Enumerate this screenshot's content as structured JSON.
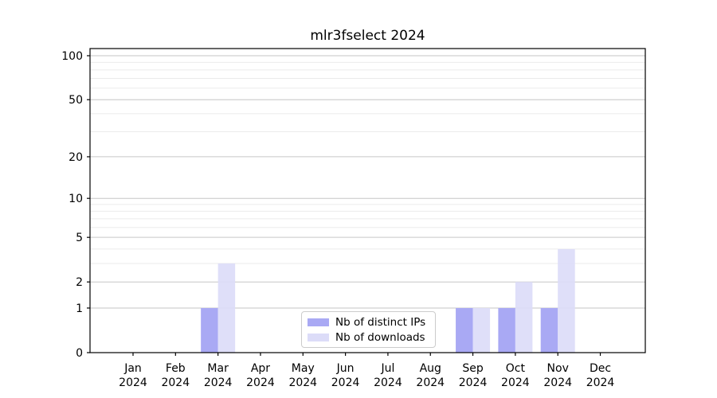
{
  "chart_data": {
    "type": "bar",
    "title": "mlr3fselect 2024",
    "xlabel": "",
    "ylabel": "",
    "categories": [
      "Jan 2024",
      "Feb 2024",
      "Mar 2024",
      "Apr 2024",
      "May 2024",
      "Jun 2024",
      "Jul 2024",
      "Aug 2024",
      "Sep 2024",
      "Oct 2024",
      "Nov 2024",
      "Dec 2024"
    ],
    "series": [
      {
        "name": "Nb of distinct IPs",
        "color": "#a9a9f4",
        "values": [
          0,
          0,
          1,
          0,
          0,
          0,
          0,
          0,
          1,
          1,
          1,
          0
        ]
      },
      {
        "name": "Nb of downloads",
        "color": "#dcdcf8",
        "values": [
          0,
          0,
          3,
          0,
          0,
          0,
          0,
          0,
          1,
          2,
          4,
          0
        ]
      }
    ],
    "y_axis": {
      "scale": "log1p",
      "ticks": [
        0,
        1,
        2,
        5,
        10,
        20,
        50,
        100
      ],
      "minor_gridlines": [
        3,
        4,
        6,
        7,
        8,
        9,
        30,
        40,
        60,
        70,
        80,
        90
      ],
      "ylim": [
        0,
        112
      ],
      "grid": true
    },
    "legend_position": "lower center",
    "colors": {
      "major_grid": "#c6c6c6",
      "minor_grid": "#ebebeb",
      "axis": "#000000"
    }
  }
}
